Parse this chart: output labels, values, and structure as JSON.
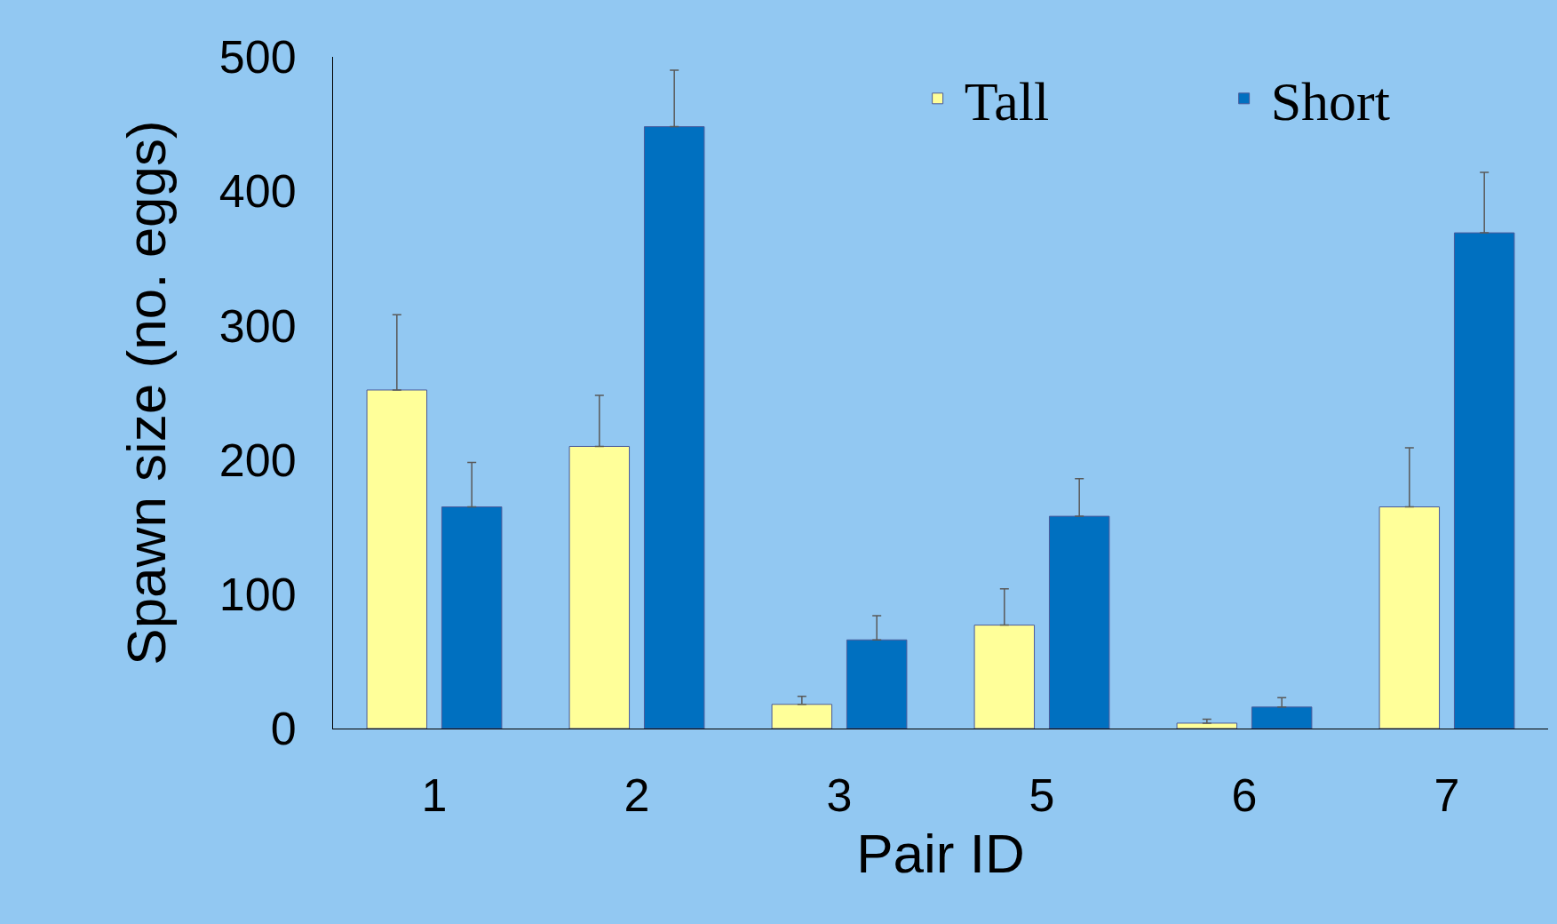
{
  "chart_data": {
    "type": "bar",
    "xlabel": "Pair ID",
    "ylabel": "Spawn size (no. eggs)",
    "categories": [
      "1",
      "2",
      "3",
      "5",
      "6",
      "7"
    ],
    "series": [
      {
        "name": "Tall",
        "color": "#ffff99",
        "values": [
          252,
          210,
          18,
          77,
          4,
          165
        ],
        "errors": [
          [
            252,
            308
          ],
          [
            210,
            248
          ],
          [
            18,
            24
          ],
          [
            77,
            104
          ],
          [
            4,
            7
          ],
          [
            165,
            209
          ]
        ]
      },
      {
        "name": "Short",
        "color": "#0070c0",
        "values": [
          165,
          448,
          66,
          158,
          16,
          369
        ],
        "errors": [
          [
            165,
            198
          ],
          [
            448,
            490
          ],
          [
            66,
            84
          ],
          [
            158,
            186
          ],
          [
            16,
            23
          ],
          [
            369,
            414
          ]
        ]
      }
    ],
    "ylim": [
      0,
      500
    ],
    "yticks": [
      0,
      100,
      200,
      300,
      400,
      500
    ],
    "grid": false,
    "legend": "top right"
  }
}
